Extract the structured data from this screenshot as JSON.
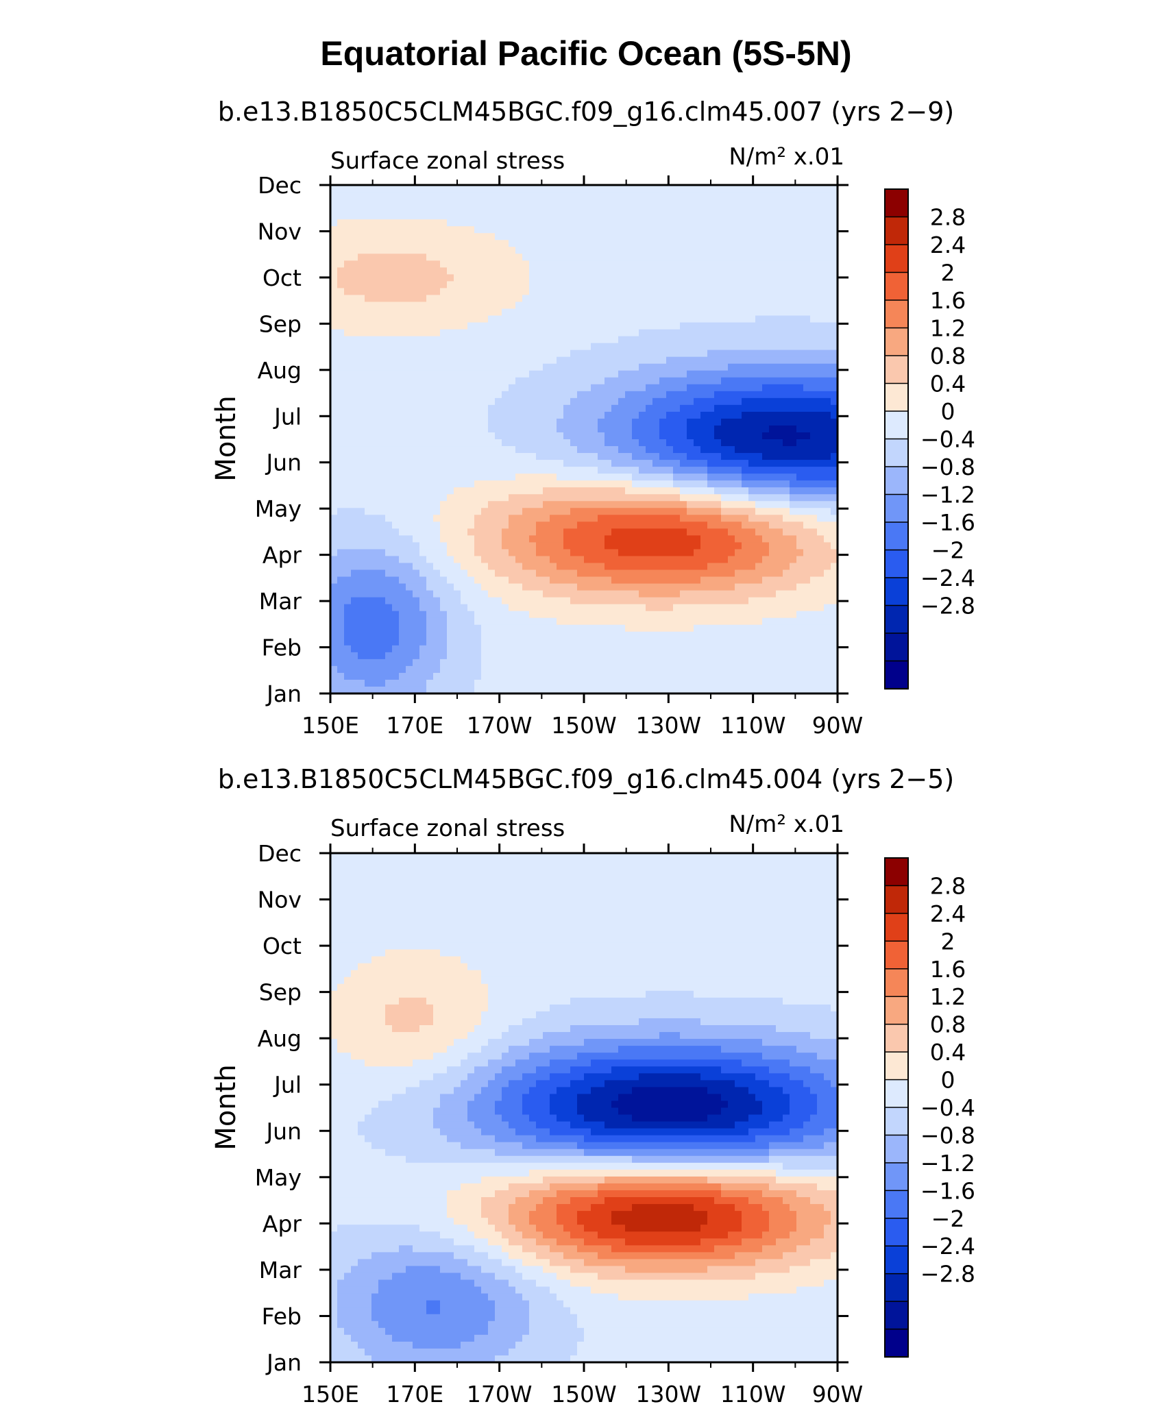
{
  "title": "Equatorial Pacific Ocean (5S-5N)",
  "colors": {
    "levels": [
      "#00008b",
      "#00149a",
      "#0026b0",
      "#0a40d8",
      "#2a5cf0",
      "#4a78f5",
      "#7096f8",
      "#9bb6fb",
      "#c2d6fd",
      "#ddeafe",
      "#fde8d4",
      "#fac8ae",
      "#f8a880",
      "#f58658",
      "#f06236",
      "#e04018",
      "#c02808",
      "#8c0000"
    ]
  },
  "chart_data": [
    {
      "type": "contour",
      "subtitle": "b.e13.B1850C5CLM45BGC.f09_g16.clm45.007 (yrs 2−9)",
      "variable": "Surface zonal stress",
      "units_html": "N/m² x.01",
      "ylabel": "Month",
      "xticks": [
        "150E",
        "170E",
        "170W",
        "150W",
        "130W",
        "110W",
        "90W"
      ],
      "yticks": [
        "Jan",
        "Feb",
        "Mar",
        "Apr",
        "May",
        "Jun",
        "Jul",
        "Aug",
        "Sep",
        "Oct",
        "Nov",
        "Dec"
      ],
      "colorbar_labels": [
        "2.8",
        "2.4",
        "2",
        "1.6",
        "1.2",
        "0.8",
        "0.4",
        "0",
        "−0.4",
        "−0.8",
        "−1.2",
        "−1.6",
        "−2",
        "−2.4",
        "−2.8"
      ],
      "features": [
        {
          "lon": 257,
          "month": 6.5,
          "amp": -3.1,
          "spread": 42,
          "spread_m": 1.5
        },
        {
          "lon": 228,
          "month": 4.4,
          "amp": 2.7,
          "spread": 40,
          "spread_m": 1.3
        },
        {
          "lon": 160,
          "month": 2.5,
          "amp": -1.6,
          "spread": 18,
          "spread_m": 1.8
        },
        {
          "lon": 165,
          "month": 10.0,
          "amp": 0.8,
          "spread": 30,
          "spread_m": 1.2
        }
      ]
    },
    {
      "type": "contour",
      "subtitle": "b.e13.B1850C5CLM45BGC.f09_g16.clm45.004 (yrs 2−5)",
      "variable": "Surface zonal stress",
      "units_html": "N/m² x.01",
      "ylabel": "Month",
      "xticks": [
        "150E",
        "170E",
        "170W",
        "150W",
        "130W",
        "110W",
        "90W"
      ],
      "yticks": [
        "Jan",
        "Feb",
        "Mar",
        "Apr",
        "May",
        "Jun",
        "Jul",
        "Aug",
        "Sep",
        "Oct",
        "Nov",
        "Dec"
      ],
      "colorbar_labels": [
        "2.8",
        "2.4",
        "2",
        "1.6",
        "1.2",
        "0.8",
        "0.4",
        "0",
        "−0.4",
        "−0.8",
        "−1.2",
        "−1.6",
        "−2",
        "−2.4",
        "−2.8"
      ],
      "features": [
        {
          "lon": 230,
          "month": 6.5,
          "amp": -3.3,
          "spread": 45,
          "spread_m": 1.4
        },
        {
          "lon": 228,
          "month": 4.2,
          "amp": 3.1,
          "spread": 40,
          "spread_m": 1.2
        },
        {
          "lon": 175,
          "month": 2.3,
          "amp": -1.4,
          "spread": 25,
          "spread_m": 1.6
        },
        {
          "lon": 170,
          "month": 8.3,
          "amp": 0.8,
          "spread": 20,
          "spread_m": 1.5
        }
      ]
    }
  ]
}
